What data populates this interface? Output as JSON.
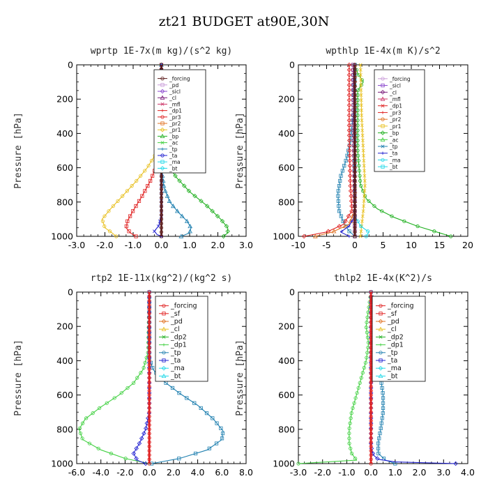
{
  "title": "zt21  BUDGET at90E,30N",
  "colors": {
    "forcing_dark": "#5a1a1a",
    "pd_light": "#c89ad8",
    "sicl": "#8844cc",
    "cl": "#7a1a7a",
    "mfl": "#cc3366",
    "red": "#e02020",
    "orange": "#e07020",
    "yellow": "#e8c020",
    "blue": "#2020d0",
    "green": "#20b020",
    "lightgreen": "#40d040",
    "teal": "#2080b0",
    "cyan": "#20d8e8"
  },
  "chart_data": [
    {
      "type": "line",
      "title": "wprtp  1E-7x(m kg)/(s^2 kg)",
      "ylabel": "Pressure [hPa]",
      "xlim": [
        -3,
        3
      ],
      "ylim": [
        1000,
        0
      ],
      "xticks": [
        "-3.0",
        "-2.0",
        "-1.0",
        "0.0",
        "1.0",
        "2.0",
        "3.0"
      ],
      "xtick_values": [
        -3,
        -2,
        -1,
        0,
        1,
        2,
        3
      ],
      "yticks": [
        "0",
        "200",
        "400",
        "600",
        "800",
        "1000"
      ],
      "ytick_values": [
        0,
        200,
        400,
        600,
        800,
        1000
      ],
      "legend": [
        "_forcing",
        "_pd",
        "_sicl",
        "_cl",
        "_mfl",
        "_dp1",
        "_pr3",
        "_pr2",
        "_pr1",
        "_bp",
        "_ac",
        "_tp",
        "_ta",
        "_ma",
        "_bt"
      ],
      "legend_colors": [
        "#5a1a1a",
        "#c89ad8",
        "#8844cc",
        "#7a1a7a",
        "#cc3366",
        "#e02020",
        "#e02020",
        "#e07020",
        "#e8c020",
        "#20b020",
        "#40d040",
        "#2080b0",
        "#2020d0",
        "#20d8e8",
        "#20d8e8"
      ],
      "series": [
        {
          "color": "#e8c020",
          "x": [
            0,
            0,
            -0.05,
            -0.2,
            -0.5,
            -0.9,
            -1.35,
            -1.8,
            -2.1,
            -2.0,
            -1.75,
            -1.6
          ],
          "y": [
            0,
            350,
            450,
            520,
            600,
            680,
            760,
            840,
            900,
            950,
            980,
            1000
          ]
        },
        {
          "color": "#e02020",
          "x": [
            0,
            0,
            -0.05,
            -0.15,
            -0.4,
            -0.7,
            -1.0,
            -1.2,
            -1.25,
            -1.1,
            -0.9
          ],
          "y": [
            0,
            400,
            500,
            580,
            680,
            770,
            850,
            910,
            950,
            980,
            1000
          ]
        },
        {
          "color": "#20b020",
          "x": [
            0,
            0,
            0.05,
            0.2,
            0.55,
            1.0,
            1.6,
            2.1,
            2.35,
            2.35,
            2.2
          ],
          "y": [
            0,
            400,
            500,
            580,
            660,
            740,
            820,
            900,
            950,
            980,
            1000
          ]
        },
        {
          "color": "#2080b0",
          "x": [
            0,
            0,
            0.1,
            0.3,
            0.6,
            0.9,
            1.05,
            1.0,
            0.7
          ],
          "y": [
            0,
            600,
            720,
            800,
            860,
            910,
            950,
            980,
            1000
          ]
        },
        {
          "color": "#2020d0",
          "x": [
            0,
            0,
            -0.1,
            -0.25,
            -0.15,
            0
          ],
          "y": [
            0,
            880,
            940,
            970,
            990,
            1000
          ]
        },
        {
          "color": "#5a1a1a",
          "x": [
            0,
            0
          ],
          "y": [
            0,
            1000
          ]
        }
      ]
    },
    {
      "type": "line",
      "title": "wpthlp  1E-4x(m K)/s^2",
      "ylabel": "Pressure [hPa]",
      "xlim": [
        -10,
        20
      ],
      "ylim": [
        1000,
        0
      ],
      "xticks": [
        "-10",
        "-5",
        "0",
        "5",
        "10",
        "15",
        "20"
      ],
      "xtick_values": [
        -10,
        -5,
        0,
        5,
        10,
        15,
        20
      ],
      "yticks": [
        "0",
        "200",
        "400",
        "600",
        "800",
        "1000"
      ],
      "ytick_values": [
        0,
        200,
        400,
        600,
        800,
        1000
      ],
      "legend": [
        "_forcing",
        "_sicl",
        "_cl",
        "_mfl",
        "_dp1",
        "_pr3",
        "_pr2",
        "_pr1",
        "_bp",
        "_ac",
        "_tp",
        "_ta",
        "_ma",
        "_bt"
      ],
      "legend_colors": [
        "#c89ad8",
        "#8844cc",
        "#7a1a7a",
        "#cc3366",
        "#e02020",
        "#e02020",
        "#e07020",
        "#e8c020",
        "#20b020",
        "#40d040",
        "#2080b0",
        "#2020d0",
        "#20d8e8",
        "#20d8e8"
      ],
      "series": [
        {
          "color": "#20b020",
          "x": [
            0,
            0.5,
            1.5,
            0.5,
            0.5,
            1.0,
            2.0,
            4.0,
            7.0,
            11.0,
            15.0,
            17.0
          ],
          "y": [
            0,
            50,
            100,
            150,
            500,
            700,
            780,
            840,
            890,
            940,
            980,
            1000
          ]
        },
        {
          "color": "#2080b0",
          "x": [
            0,
            -0.3,
            -0.8,
            -1.5,
            -2.5,
            -3.0,
            -2.8,
            -2.0,
            -1.0,
            0
          ],
          "y": [
            0,
            300,
            450,
            550,
            650,
            750,
            850,
            920,
            970,
            1000
          ]
        },
        {
          "color": "#e02020",
          "x": [
            -1.0,
            -1.0,
            -0.8,
            -0.5,
            -2.0,
            -5.0,
            -9.0
          ],
          "y": [
            0,
            400,
            700,
            850,
            930,
            975,
            1000
          ]
        },
        {
          "color": "#e07020",
          "x": [
            0,
            0,
            -1.0,
            -4.0,
            -7.0
          ],
          "y": [
            0,
            850,
            930,
            975,
            1000
          ]
        },
        {
          "color": "#e8c020",
          "x": [
            1.0,
            1.2,
            1.5,
            1.8,
            1.5,
            1.0
          ],
          "y": [
            0,
            300,
            500,
            700,
            850,
            1000
          ]
        },
        {
          "color": "#2020d0",
          "x": [
            0,
            0,
            -1.0,
            -2.5,
            -1.0
          ],
          "y": [
            0,
            880,
            940,
            975,
            1000
          ]
        },
        {
          "color": "#20d8e8",
          "x": [
            0,
            0,
            1.0,
            2.5,
            2.0
          ],
          "y": [
            0,
            880,
            940,
            975,
            1000
          ]
        },
        {
          "color": "#7a1a7a",
          "x": [
            -0.3,
            -0.2,
            0,
            0
          ],
          "y": [
            0,
            400,
            800,
            1000
          ]
        },
        {
          "color": "#5a1a1a",
          "x": [
            0,
            0
          ],
          "y": [
            0,
            1000
          ]
        }
      ]
    },
    {
      "type": "line",
      "title": "rtp2  1E-11x(kg^2)/(kg^2 s)",
      "ylabel": "Pressure [hPa]",
      "xlim": [
        -6,
        8
      ],
      "ylim": [
        1000,
        0
      ],
      "xticks": [
        "-6.0",
        "-4.0",
        "-2.0",
        "0.0",
        "2.0",
        "4.0",
        "6.0",
        "8.0"
      ],
      "xtick_values": [
        -6,
        -4,
        -2,
        0,
        2,
        4,
        6,
        8
      ],
      "yticks": [
        "0",
        "200",
        "400",
        "600",
        "800",
        "1000"
      ],
      "ytick_values": [
        0,
        200,
        400,
        600,
        800,
        1000
      ],
      "legend": [
        "_forcing",
        "_sf",
        "_pd",
        "_cl",
        "_dp2",
        "_dp1",
        "_tp",
        "_ta",
        "_ma",
        "_bt"
      ],
      "legend_colors": [
        "#e02020",
        "#e02020",
        "#e07020",
        "#e8c020",
        "#20b020",
        "#40d040",
        "#2080b0",
        "#2020d0",
        "#20d8e8",
        "#20d8e8"
      ],
      "series": [
        {
          "color": "#40d040",
          "x": [
            0,
            -0.1,
            -0.5,
            -1.3,
            -2.5,
            -4.0,
            -5.3,
            -5.8,
            -5.5,
            -4.0,
            -2.0,
            0
          ],
          "y": [
            0,
            350,
            450,
            530,
            600,
            670,
            740,
            800,
            860,
            920,
            970,
            1000
          ]
        },
        {
          "color": "#2080b0",
          "x": [
            0,
            0,
            0.3,
            1.2,
            2.5,
            4.0,
            5.3,
            6.1,
            6.0,
            4.8,
            2.5,
            0.2
          ],
          "y": [
            0,
            380,
            450,
            520,
            590,
            660,
            740,
            810,
            860,
            920,
            970,
            1000
          ]
        },
        {
          "color": "#2020d0",
          "x": [
            0,
            0,
            -0.3,
            -0.8,
            -1.3,
            -1.0,
            -0.3
          ],
          "y": [
            0,
            700,
            800,
            880,
            940,
            980,
            1000
          ]
        },
        {
          "color": "#e02020",
          "x": [
            0,
            0
          ],
          "y": [
            0,
            1000
          ]
        }
      ]
    },
    {
      "type": "line",
      "title": "thlp2  1E-4x(K^2)/s",
      "ylabel": "Pressure [hPa]",
      "xlim": [
        -3,
        4
      ],
      "ylim": [
        1000,
        0
      ],
      "xticks": [
        "-3.0",
        "-2.0",
        "-1.0",
        "0.0",
        "1.0",
        "2.0",
        "3.0",
        "4.0"
      ],
      "xtick_values": [
        -3,
        -2,
        -1,
        0,
        1,
        2,
        3,
        4
      ],
      "yticks": [
        "0",
        "200",
        "400",
        "600",
        "800",
        "1000"
      ],
      "ytick_values": [
        0,
        200,
        400,
        600,
        800,
        1000
      ],
      "legend": [
        "_forcing",
        "_sf",
        "_pd",
        "_cl",
        "_dp2",
        "_dp1",
        "_tp",
        "_ta",
        "_ma",
        "_bt"
      ],
      "legend_colors": [
        "#e02020",
        "#e02020",
        "#e07020",
        "#e8c020",
        "#20b020",
        "#40d040",
        "#2080b0",
        "#2020d0",
        "#20d8e8",
        "#20d8e8"
      ],
      "series": [
        {
          "color": "#40d040",
          "x": [
            0,
            -0.1,
            -0.2,
            -0.1,
            -0.2,
            -0.4,
            -0.6,
            -0.8,
            -0.9,
            -0.9,
            -0.8,
            -0.6,
            -3.0
          ],
          "y": [
            0,
            100,
            200,
            300,
            400,
            500,
            600,
            700,
            800,
            880,
            940,
            980,
            1000
          ]
        },
        {
          "color": "#2080b0",
          "x": [
            0,
            0.1,
            0.2,
            0.1,
            0.2,
            0.4,
            0.5,
            0.5,
            0.4,
            0.3,
            0.3,
            0.6,
            1.0
          ],
          "y": [
            0,
            100,
            200,
            300,
            400,
            500,
            600,
            700,
            800,
            880,
            940,
            980,
            1000
          ]
        },
        {
          "color": "#2020d0",
          "x": [
            0,
            0,
            0.1,
            0.3,
            1.0,
            3.5
          ],
          "y": [
            0,
            900,
            950,
            975,
            990,
            1000
          ]
        },
        {
          "color": "#e02020",
          "x": [
            0,
            0
          ],
          "y": [
            0,
            1000
          ]
        }
      ]
    }
  ]
}
